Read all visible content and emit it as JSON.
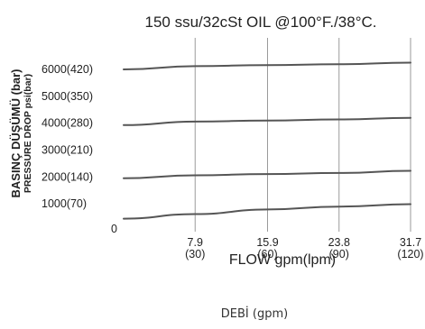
{
  "chart_data": {
    "type": "line",
    "title": "150 ssu/32cSt OIL @100°F./38°C.",
    "xlabel": "FLOW gpm(lpm)",
    "ylabel": [
      "BASINÇ DÜŞÜMÜ (bar)",
      "PRESSURE DROP psi(bar)"
    ],
    "caption": "DEBİ (gpm)",
    "x_origin_label": "0",
    "x_ticks": [
      {
        "value": 7.9,
        "gpm": "7.9",
        "lpm": "(30)"
      },
      {
        "value": 15.9,
        "gpm": "15.9",
        "lpm": "(60)"
      },
      {
        "value": 23.8,
        "gpm": "23.8",
        "lpm": "(90)"
      },
      {
        "value": 31.7,
        "gpm": "31.7",
        "lpm": "(120)"
      }
    ],
    "y_ticks": [
      {
        "value": 1000,
        "label": "1000(70)"
      },
      {
        "value": 2000,
        "label": "2000(140)"
      },
      {
        "value": 3000,
        "label": "3000(210)"
      },
      {
        "value": 4000,
        "label": "4000(280)"
      },
      {
        "value": 5000,
        "label": "5000(350)"
      },
      {
        "value": 6000,
        "label": "6000(420)"
      }
    ],
    "xlim": [
      0,
      31.7
    ],
    "ylim": [
      0,
      6000
    ],
    "grid": "vertical",
    "series": [
      {
        "x": [
          0,
          7.9,
          15.9,
          23.8,
          31.7
        ],
        "y": [
          450,
          620,
          790,
          900,
          990
        ]
      },
      {
        "x": [
          0,
          7.9,
          15.9,
          23.8,
          31.7
        ],
        "y": [
          1950,
          2060,
          2110,
          2150,
          2230
        ]
      },
      {
        "x": [
          0,
          7.9,
          15.9,
          23.8,
          31.7
        ],
        "y": [
          3930,
          4060,
          4100,
          4140,
          4200
        ]
      },
      {
        "x": [
          0,
          7.9,
          15.9,
          23.8,
          31.7
        ],
        "y": [
          6000,
          6120,
          6160,
          6190,
          6250
        ]
      }
    ],
    "colors": {
      "line": "#555555",
      "grid": "#9a9a9a",
      "text": "#222222"
    }
  }
}
